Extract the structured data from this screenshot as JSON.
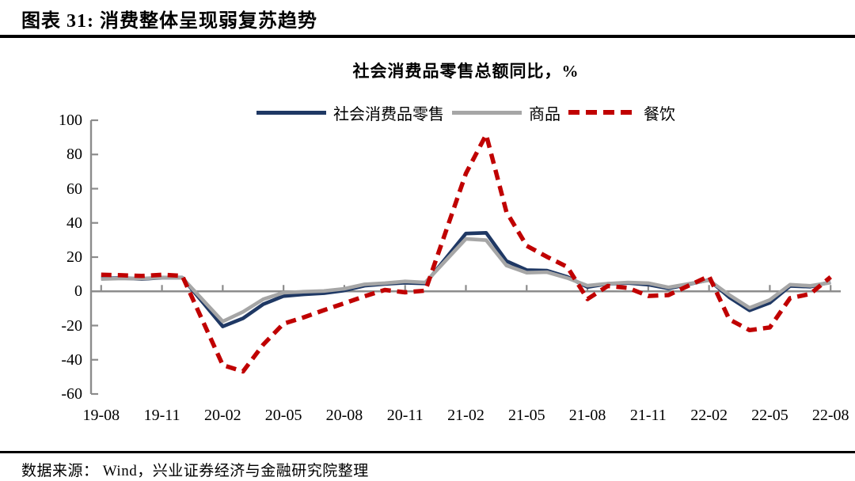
{
  "page": {
    "title": "图表 31: 消费整体呈现弱复苏趋势",
    "source_note": "数据来源： Wind，兴业证券经济与金融研究院整理"
  },
  "colors": {
    "retail_line": "#1F3864",
    "goods_line": "#A6A6A6",
    "catering_line": "#C00000",
    "axis": "#8C8C8C",
    "text": "#000000"
  },
  "chart_data": {
    "type": "line",
    "title": "社会消费品零售总额同比，%",
    "xlabel": "",
    "ylabel": "",
    "ylim": [
      -60,
      100
    ],
    "y_ticks": [
      100,
      80,
      60,
      40,
      20,
      0,
      -20,
      -40,
      -60
    ],
    "grid": false,
    "legend_position": "top",
    "x_label_interval": 3,
    "x": [
      "19-08",
      "19-09",
      "19-10",
      "19-11",
      "19-12",
      "20-01",
      "20-02",
      "20-03",
      "20-04",
      "20-05",
      "20-06",
      "20-07",
      "20-08",
      "20-09",
      "20-10",
      "20-11",
      "20-12",
      "21-01",
      "21-02",
      "21-03",
      "21-04",
      "21-05",
      "21-06",
      "21-07",
      "21-08",
      "21-09",
      "21-10",
      "21-11",
      "21-12",
      "22-01",
      "22-02",
      "22-03",
      "22-04",
      "22-05",
      "22-06",
      "22-07",
      "22-08"
    ],
    "x_tick_labels": [
      "19-08",
      "19-11",
      "20-02",
      "20-05",
      "20-08",
      "20-11",
      "21-02",
      "21-05",
      "21-08",
      "21-11",
      "22-02",
      "22-05",
      "22-08"
    ],
    "series": [
      {
        "key": "retail",
        "name": "社会消费品零售",
        "color": "#1F3864",
        "style": "solid",
        "values": [
          7.5,
          7.8,
          7.2,
          8.0,
          8.0,
          null,
          -20.5,
          -15.8,
          -7.5,
          -2.8,
          -1.8,
          -1.1,
          0.5,
          3.3,
          4.3,
          5.0,
          4.6,
          null,
          33.8,
          34.2,
          17.7,
          12.4,
          12.1,
          8.5,
          2.5,
          4.4,
          4.9,
          3.9,
          1.7,
          null,
          6.7,
          -3.5,
          -11.1,
          -6.7,
          3.1,
          2.7,
          5.4
        ]
      },
      {
        "key": "goods",
        "name": "商品",
        "color": "#A6A6A6",
        "style": "solid",
        "values": [
          7.2,
          7.5,
          7.4,
          8.1,
          7.9,
          null,
          -17.6,
          -12.0,
          -4.6,
          -0.8,
          -0.2,
          0.2,
          1.5,
          4.1,
          4.8,
          5.8,
          5.2,
          null,
          30.7,
          29.9,
          15.1,
          10.9,
          11.2,
          7.8,
          3.3,
          4.5,
          5.2,
          4.8,
          2.3,
          null,
          6.5,
          -2.1,
          -9.7,
          -5.0,
          3.9,
          3.2,
          5.1
        ]
      },
      {
        "key": "catering",
        "name": "餐饮",
        "color": "#C00000",
        "style": "dashed",
        "values": [
          9.7,
          9.4,
          9.0,
          9.7,
          9.1,
          null,
          -43.1,
          -46.8,
          -31.1,
          -18.9,
          -15.2,
          -11.0,
          -7.0,
          -2.9,
          0.8,
          -0.6,
          0.4,
          null,
          68.9,
          91.6,
          46.4,
          26.6,
          20.2,
          14.3,
          -4.5,
          3.1,
          2.0,
          -2.7,
          -2.2,
          null,
          8.9,
          -16.4,
          -22.7,
          -21.1,
          -4.0,
          -1.5,
          8.4
        ]
      }
    ]
  }
}
